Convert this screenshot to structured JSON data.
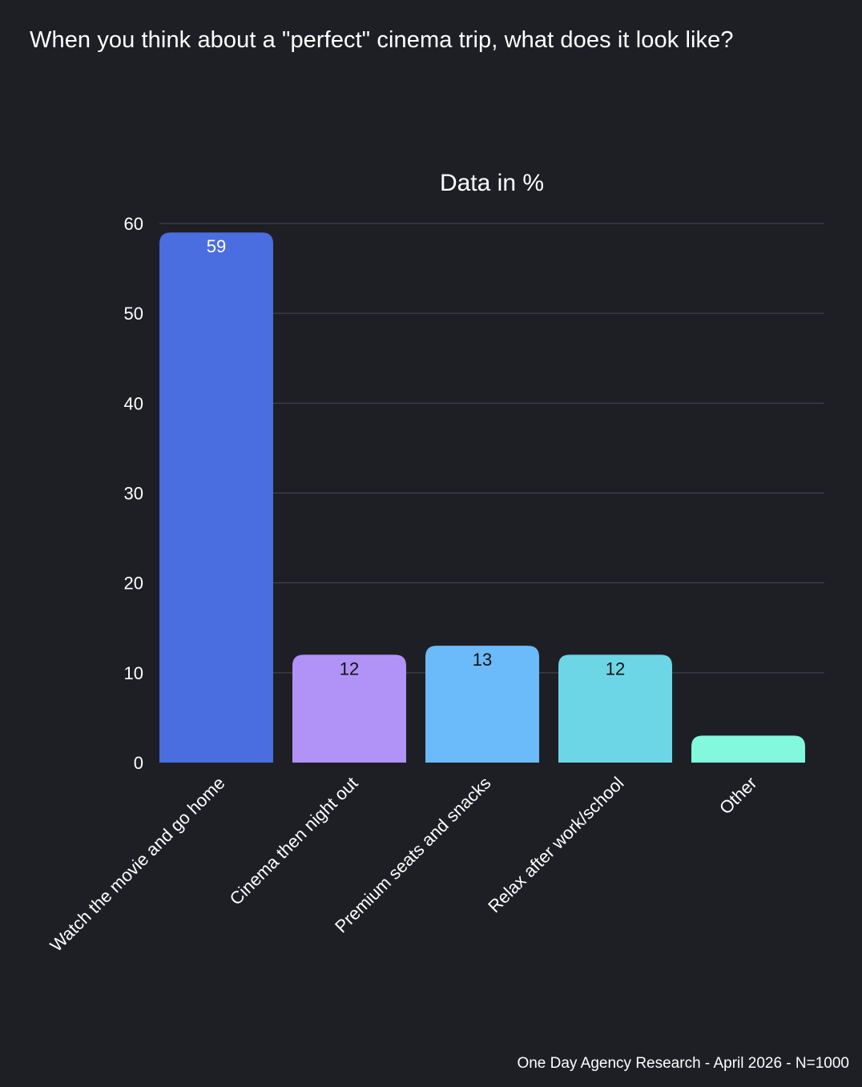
{
  "title": "When you think about a \"perfect\" cinema trip, what does it look like?",
  "source": "One Day Agency Research - April 2026 - N=1000",
  "colors": {
    "background": "#1e1f25",
    "text": "#ffffff",
    "grid": "#4a4b52",
    "bar_colors": [
      "#4a6ddf",
      "#b193f7",
      "#6bbaf9",
      "#6dd6e6",
      "#82f9dc"
    ],
    "label_colors": [
      "#ffffff",
      "#111111",
      "#111111",
      "#111111",
      "#111111"
    ]
  },
  "chart_data": {
    "type": "bar",
    "title": "Data in %",
    "categories": [
      "Watch the movie and go home",
      "Cinema then night out",
      "Premium seats and snacks",
      "Relax after work/school",
      "Other"
    ],
    "values": [
      59,
      12,
      13,
      12,
      3
    ],
    "data_labels": [
      "59",
      "12",
      "13",
      "12",
      ""
    ],
    "ylim": [
      0,
      60
    ],
    "yticks": [
      "0",
      "10",
      "20",
      "30",
      "40",
      "50",
      "60"
    ],
    "grid": true,
    "legend": "none"
  }
}
